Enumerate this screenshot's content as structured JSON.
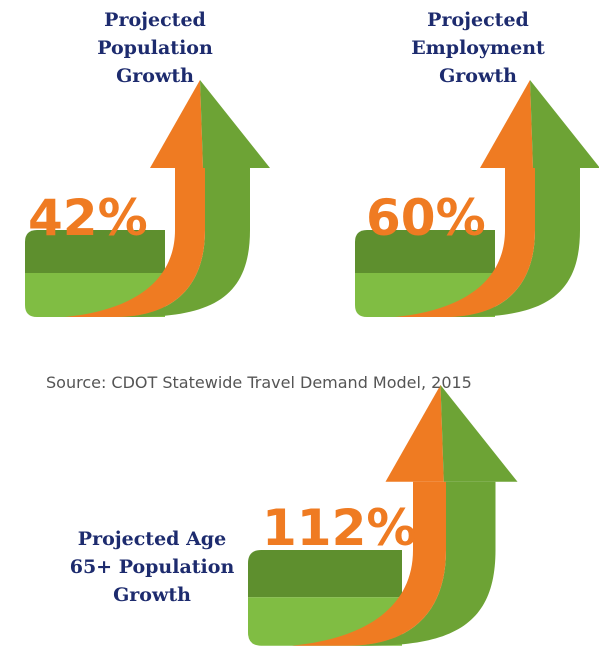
{
  "items": [
    {
      "title": [
        "Projected",
        "Population",
        "Growth"
      ],
      "value": "42%"
    },
    {
      "title": [
        "Projected",
        "Employment",
        "Growth"
      ],
      "value": "60%"
    },
    {
      "title": [
        "Projected Age",
        "65+ Population",
        "Growth"
      ],
      "value": "112%"
    }
  ],
  "source": "Source: CDOT Statewide Travel Demand Model, 2015"
}
